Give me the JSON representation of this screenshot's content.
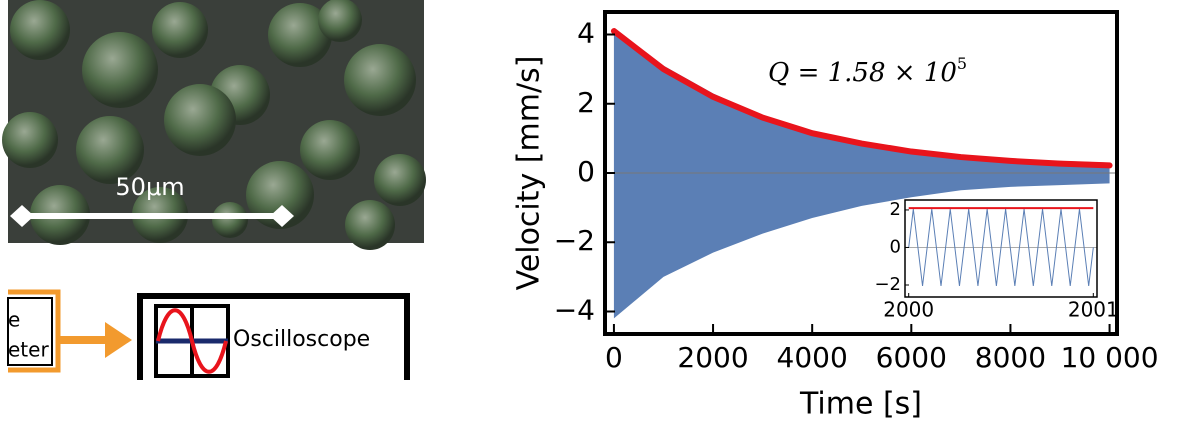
{
  "micrograph": {
    "scale_label": "50μm"
  },
  "diagram": {
    "left_block_lines": [
      "e",
      "eter"
    ],
    "oscilloscope_label": "Oscilloscope"
  },
  "chart_data": {
    "type": "line",
    "xlabel": "Time [s]",
    "ylabel": "Velocity [mm/s]",
    "annotation": {
      "text": "Q = 1.58 × 10",
      "exponent": "5"
    },
    "x": [
      0,
      1000,
      2000,
      3000,
      4000,
      5000,
      6000,
      7000,
      8000,
      9000,
      10000
    ],
    "band": {
      "color": "#5b7fb5",
      "upper": [
        4.15,
        3.1,
        2.3,
        1.65,
        1.2,
        0.9,
        0.65,
        0.5,
        0.4,
        0.35,
        0.3
      ],
      "lower": [
        -4.2,
        -3.0,
        -2.3,
        -1.75,
        -1.3,
        -0.95,
        -0.7,
        -0.5,
        -0.4,
        -0.35,
        -0.3
      ]
    },
    "series": [
      {
        "color": "#e8141c",
        "values": [
          4.1,
          3.0,
          2.2,
          1.6,
          1.15,
          0.85,
          0.62,
          0.46,
          0.35,
          0.27,
          0.22
        ]
      }
    ],
    "xlim": [
      -180,
      10150
    ],
    "ylim": [
      -4.65,
      4.65
    ],
    "xticks": [
      0,
      2000,
      4000,
      6000,
      8000,
      {
        "value": 10000,
        "label": "10 000"
      }
    ],
    "yticks": [
      {
        "value": -4,
        "label": "−4"
      },
      {
        "value": -2,
        "label": "−2"
      },
      0,
      2,
      4
    ],
    "inset": {
      "x": [
        2000,
        2000.025,
        2000.05,
        2000.075,
        2000.1,
        2000.125,
        2000.15,
        2000.175,
        2000.2,
        2000.225,
        2000.25,
        2000.275,
        2000.3,
        2000.325,
        2000.35,
        2000.375,
        2000.4,
        2000.425,
        2000.45,
        2000.475,
        2000.5,
        2000.525,
        2000.55,
        2000.575,
        2000.6,
        2000.625,
        2000.65,
        2000.675,
        2000.7,
        2000.725,
        2000.75,
        2000.775,
        2000.8,
        2000.825,
        2000.85,
        2000.875,
        2000.9,
        2000.925,
        2000.95,
        2000.975,
        2001
      ],
      "values": [
        0,
        2.05,
        0,
        -2.05,
        0,
        2.05,
        0,
        -2.05,
        0,
        2.05,
        0,
        -2.05,
        0,
        2.05,
        0,
        -2.05,
        0,
        2.05,
        0,
        -2.05,
        0,
        2.05,
        0,
        -2.05,
        0,
        2.05,
        0,
        -2.05,
        0,
        2.05,
        0,
        -2.05,
        0,
        2.05,
        0,
        -2.05,
        0,
        2.05,
        0,
        -2.05,
        0
      ],
      "color": "#5b7fb5",
      "fit": {
        "x": [
          2000,
          2001
        ],
        "values": [
          2.1,
          2.1
        ],
        "color": "#e8141c"
      },
      "xlim": [
        1999.98,
        2001.02
      ],
      "ylim": [
        -2.64,
        2.53
      ],
      "xticks": [
        2000,
        2001
      ],
      "yticks": [
        {
          "value": -2,
          "label": "−2"
        },
        0,
        2
      ]
    }
  }
}
